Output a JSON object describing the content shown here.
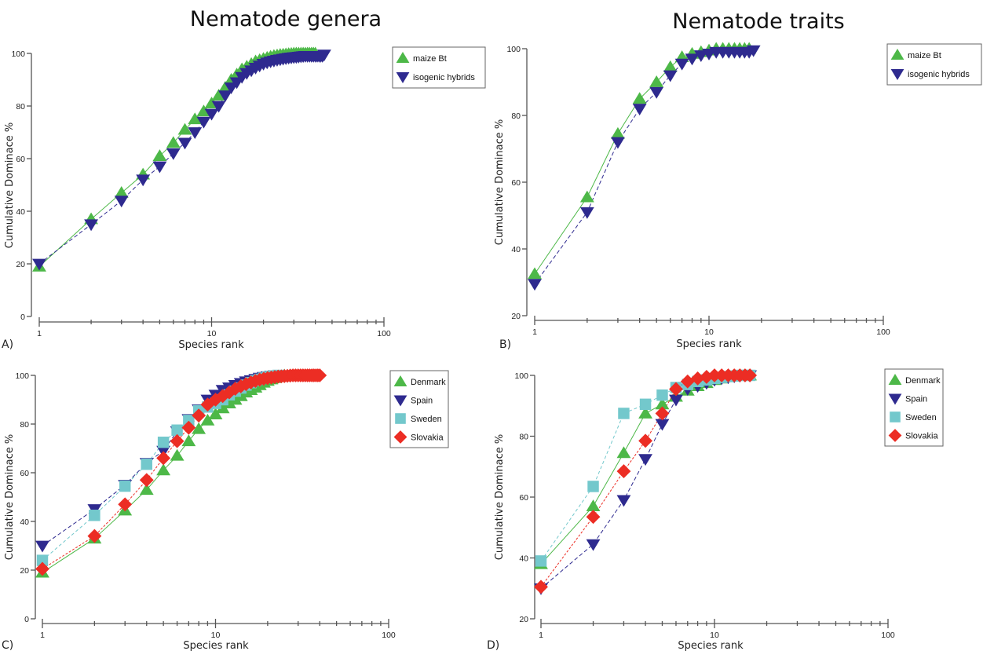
{
  "figure": {
    "titles": {
      "left": "Nematode genera",
      "right": "Nematode traits"
    }
  },
  "series_styles": {
    "maize Bt": {
      "color": "#4db848",
      "marker": "triangle-up",
      "dash": ""
    },
    "isogenic hybrids": {
      "color": "#2e2a8f",
      "marker": "triangle-down",
      "dash": "5,3"
    },
    "Denmark": {
      "color": "#4db848",
      "marker": "triangle-up",
      "dash": ""
    },
    "Spain": {
      "color": "#2e2a8f",
      "marker": "triangle-down",
      "dash": "5,3"
    },
    "Sweden": {
      "color": "#73c8cc",
      "marker": "square",
      "dash": "4,3"
    },
    "Slovakia": {
      "color": "#ec2d24",
      "marker": "diamond",
      "dash": "3,2"
    }
  },
  "chart_data": [
    {
      "id": "A",
      "panel_label": "A)",
      "type": "line",
      "title": "Nematode genera",
      "xlabel": "Species rank",
      "ylabel": "Cumulative Dominace %",
      "xscale": "log",
      "xlim": [
        1,
        100
      ],
      "ylim": [
        0,
        100
      ],
      "xticks": [
        1,
        10,
        100
      ],
      "yticks": [
        0,
        20,
        40,
        60,
        80,
        100
      ],
      "grid": false,
      "legend": "top-right",
      "series": [
        {
          "name": "maize Bt",
          "x": [
            1,
            2,
            3,
            4,
            5,
            6,
            7,
            8,
            9,
            10,
            11,
            12,
            13,
            14,
            15,
            16,
            17,
            18,
            19,
            20,
            21,
            22,
            23,
            24,
            25,
            26,
            27,
            28,
            29,
            30,
            31,
            32,
            33,
            34,
            35,
            36,
            37,
            38,
            39,
            40
          ],
          "y": [
            19,
            37,
            47,
            54,
            61,
            66,
            71,
            75,
            78,
            81,
            84,
            87,
            90,
            92,
            94,
            95,
            96,
            97,
            97.5,
            98,
            98.4,
            98.8,
            99.1,
            99.3,
            99.5,
            99.6,
            99.7,
            99.8,
            99.9,
            100,
            100,
            100,
            100,
            100,
            100,
            100,
            100,
            100,
            100,
            100
          ]
        },
        {
          "name": "isogenic hybrids",
          "x": [
            1,
            2,
            3,
            4,
            5,
            6,
            7,
            8,
            9,
            10,
            11,
            12,
            13,
            14,
            15,
            16,
            17,
            18,
            19,
            20,
            21,
            22,
            23,
            24,
            25,
            26,
            27,
            28,
            29,
            30,
            31,
            32,
            33,
            34,
            35,
            36,
            37,
            38,
            39,
            40,
            41,
            42,
            43,
            44,
            45
          ],
          "y": [
            20,
            35,
            44,
            52,
            57,
            62,
            66,
            70,
            74,
            77,
            80,
            84,
            87,
            89,
            91,
            92.5,
            93.5,
            94.5,
            95.3,
            96,
            96.5,
            96.9,
            97.2,
            97.5,
            97.7,
            97.9,
            98.1,
            98.3,
            98.4,
            98.5,
            98.6,
            98.7,
            98.8,
            98.9,
            99,
            99,
            99,
            99,
            99,
            99,
            99,
            99,
            99,
            99,
            99.5
          ]
        }
      ]
    },
    {
      "id": "B",
      "panel_label": "B)",
      "type": "line",
      "title": "Nematode traits",
      "xlabel": "Species rank",
      "ylabel": "Cumulative Dominace %",
      "xscale": "log",
      "xlim": [
        1,
        100
      ],
      "ylim": [
        20,
        100
      ],
      "xticks": [
        1,
        10,
        100
      ],
      "yticks": [
        20,
        40,
        60,
        80,
        100
      ],
      "grid": false,
      "legend": "top-right",
      "series": [
        {
          "name": "maize Bt",
          "x": [
            1,
            2,
            3,
            4,
            5,
            6,
            7,
            8,
            9,
            10,
            11,
            12,
            13,
            14,
            15,
            16,
            17
          ],
          "y": [
            32.5,
            55.5,
            74.5,
            85,
            90,
            94.5,
            97.5,
            98.5,
            99,
            99.5,
            100,
            100,
            100,
            100,
            100,
            100,
            100
          ]
        },
        {
          "name": "isogenic hybrids",
          "x": [
            1,
            2,
            3,
            4,
            5,
            6,
            7,
            8,
            9,
            10,
            11,
            12,
            13,
            14,
            15,
            16,
            17,
            18
          ],
          "y": [
            29.5,
            51,
            72,
            82,
            87,
            92,
            95.5,
            97,
            98,
            98.5,
            99,
            99,
            99,
            99,
            99,
            99,
            99,
            99.5
          ]
        }
      ]
    },
    {
      "id": "C",
      "panel_label": "C)",
      "type": "line",
      "title": "",
      "xlabel": "Species rank",
      "ylabel": "Cumulative Dominace %",
      "xscale": "log",
      "xlim": [
        1,
        100
      ],
      "ylim": [
        0,
        100
      ],
      "xticks": [
        1,
        10,
        100
      ],
      "yticks": [
        0,
        20,
        40,
        60,
        80,
        100
      ],
      "grid": false,
      "legend": "top-right",
      "series": [
        {
          "name": "Denmark",
          "x": [
            1,
            2,
            3,
            4,
            5,
            6,
            7,
            8,
            9,
            10,
            11,
            12,
            13,
            14,
            15,
            16,
            17,
            18,
            19,
            20,
            21,
            22,
            23,
            24,
            25
          ],
          "y": [
            19,
            33,
            44.5,
            53,
            61,
            67,
            73,
            78,
            81.5,
            84,
            86.5,
            88.5,
            90,
            91.5,
            93,
            94,
            95,
            96,
            97,
            97.8,
            98.4,
            98.9,
            99.3,
            99.7,
            100
          ]
        },
        {
          "name": "Spain",
          "x": [
            1,
            2,
            3,
            4,
            5,
            6,
            7,
            8,
            9,
            10,
            11,
            12,
            13,
            14,
            15,
            16,
            17,
            18,
            19,
            20,
            21,
            22
          ],
          "y": [
            30,
            45,
            55,
            64,
            69,
            77,
            82,
            86,
            90,
            92,
            94,
            95,
            96,
            96.8,
            97.5,
            98,
            98.5,
            99,
            99.3,
            99.6,
            99.8,
            100
          ]
        },
        {
          "name": "Sweden",
          "x": [
            1,
            2,
            3,
            4,
            5,
            6,
            7,
            8,
            9,
            10,
            11,
            12,
            13,
            14,
            15,
            16,
            17,
            18,
            19,
            20,
            21,
            22,
            23
          ],
          "y": [
            24,
            42.5,
            54.5,
            63.5,
            72.5,
            77.5,
            81.5,
            85.5,
            87,
            88.5,
            90,
            92,
            93.5,
            94.8,
            96,
            97,
            97.8,
            98.4,
            98.9,
            99.3,
            99.6,
            99.8,
            100
          ]
        },
        {
          "name": "Slovakia",
          "x": [
            1,
            2,
            3,
            4,
            5,
            6,
            7,
            8,
            9,
            10,
            11,
            12,
            13,
            14,
            15,
            16,
            17,
            18,
            19,
            20,
            21,
            22,
            23,
            24,
            25,
            26,
            27,
            28,
            29,
            30,
            31,
            32,
            33,
            34,
            35,
            36,
            37,
            38,
            39,
            40
          ],
          "y": [
            20.5,
            34,
            47,
            57,
            66,
            73,
            78.5,
            83.5,
            88,
            90,
            91.5,
            93,
            94.5,
            95.5,
            96.4,
            97.1,
            97.7,
            98.2,
            98.6,
            98.9,
            99.1,
            99.3,
            99.5,
            99.6,
            99.7,
            99.8,
            99.9,
            100,
            100,
            100,
            100,
            100,
            100,
            100,
            100,
            100,
            100,
            100,
            100,
            100
          ]
        }
      ]
    },
    {
      "id": "D",
      "panel_label": "D)",
      "type": "line",
      "title": "",
      "xlabel": "Species rank",
      "ylabel": "Cumulative Dominace %",
      "xscale": "log",
      "xlim": [
        1,
        100
      ],
      "ylim": [
        20,
        100
      ],
      "xticks": [
        1,
        10,
        100
      ],
      "yticks": [
        20,
        40,
        60,
        80,
        100
      ],
      "grid": false,
      "legend": "top-right",
      "series": [
        {
          "name": "Denmark",
          "x": [
            1,
            2,
            3,
            4,
            5,
            6,
            7,
            8,
            9,
            10,
            11,
            12,
            13,
            14,
            15,
            16
          ],
          "y": [
            38,
            57,
            74.5,
            87.5,
            90.5,
            93,
            95,
            96.5,
            97.5,
            98.5,
            99,
            99.5,
            99.8,
            100,
            100,
            100
          ]
        },
        {
          "name": "Spain",
          "x": [
            1,
            2,
            3,
            4,
            5,
            6,
            7,
            8,
            9,
            10,
            11,
            12,
            13,
            14,
            15,
            16
          ],
          "y": [
            30,
            44.5,
            59,
            72.5,
            84,
            92,
            95.5,
            96.5,
            97.5,
            98.5,
            99,
            99.3,
            99.6,
            99.8,
            100,
            100
          ]
        },
        {
          "name": "Sweden",
          "x": [
            1,
            2,
            3,
            4,
            5,
            6,
            7,
            8,
            9,
            10,
            11,
            12,
            13,
            14,
            15,
            16
          ],
          "y": [
            39,
            63.5,
            87.5,
            90.5,
            93.5,
            96,
            97,
            98,
            98.5,
            99,
            99.3,
            99.6,
            99.8,
            100,
            100,
            100
          ]
        },
        {
          "name": "Slovakia",
          "x": [
            1,
            2,
            3,
            4,
            5,
            6,
            7,
            8,
            9,
            10,
            11,
            12,
            13,
            14,
            15,
            16
          ],
          "y": [
            30.5,
            53.5,
            68.5,
            78.5,
            87.5,
            95.5,
            98,
            99,
            99.5,
            100,
            100,
            100,
            100,
            100,
            100,
            100
          ]
        }
      ]
    }
  ]
}
